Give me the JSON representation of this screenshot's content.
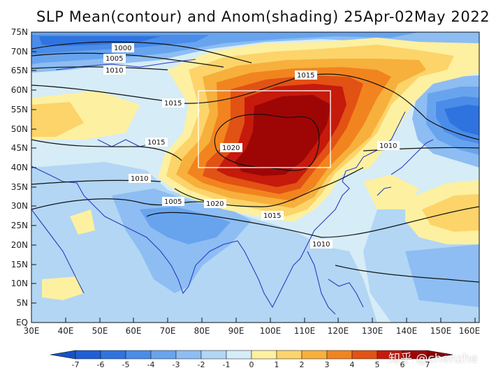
{
  "title": "SLP Mean(contour) and Anom(shading) 25Apr-02May 2022",
  "y_axis_ticks": [
    "75N",
    "70N",
    "65N",
    "60N",
    "55N",
    "50N",
    "45N",
    "40N",
    "35N",
    "30N",
    "25N",
    "20N",
    "15N",
    "10N",
    "5N",
    "EQ"
  ],
  "x_axis_ticks": [
    "30E",
    "40E",
    "50E",
    "60E",
    "70E",
    "80E",
    "90E",
    "100E",
    "110E",
    "120E",
    "130E",
    "140E",
    "150E",
    "160E"
  ],
  "contour_labels": [
    "1000",
    "1005",
    "1010",
    "1015",
    "1015",
    "1015",
    "1020",
    "1010",
    "1005",
    "1020",
    "1015",
    "1010",
    "1010"
  ],
  "colorbar": {
    "labels": [
      "-7",
      "-6",
      "-5",
      "-4",
      "-3",
      "-2",
      "-1",
      "0",
      "1",
      "2",
      "3",
      "4",
      "5",
      "6",
      "7"
    ],
    "colors": [
      "#1f5fd6",
      "#2f73e0",
      "#4a8ce8",
      "#68a4ee",
      "#8dbdf2",
      "#b2d6f4",
      "#d6ecf6",
      "#fdf0a0",
      "#fcd46a",
      "#f7b03c",
      "#f2841f",
      "#e25214",
      "#c61a0c",
      "#9e0606"
    ]
  },
  "watermark": "知乎 @chenzhe",
  "highlight_box": {
    "lon": [
      80,
      120
    ],
    "lat": [
      40,
      60
    ]
  }
}
